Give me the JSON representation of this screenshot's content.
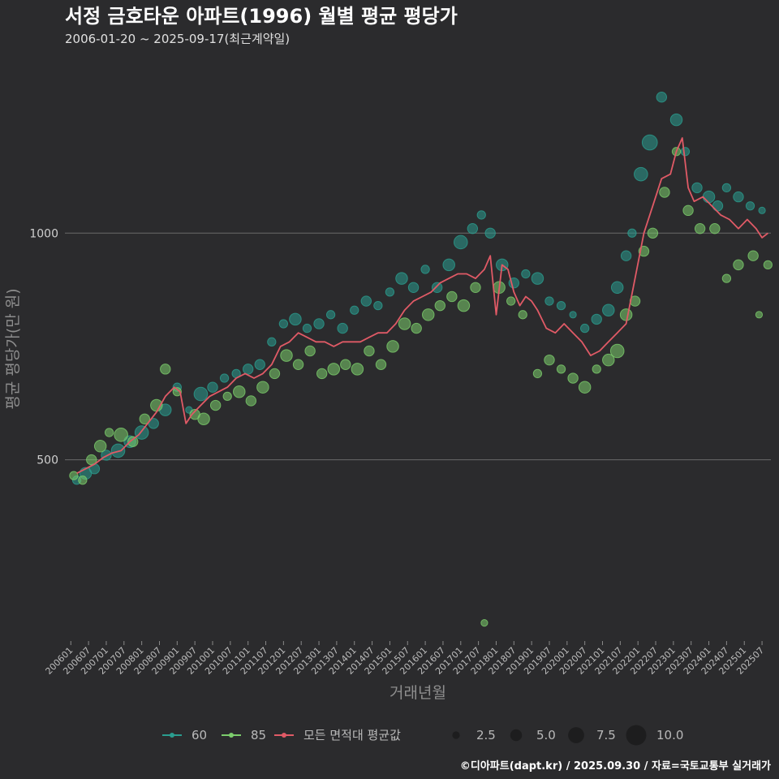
{
  "title": "서정 금호타운 아파트(1996) 월별 평균 평당가",
  "subtitle": "2006-01-20 ~ 2025-09-17(최근계약일)",
  "caption": "©디아파트(dapt.kr) / 2025.09.30 / 자료=국토교통부 실거래가",
  "colors": {
    "background": "#2b2b2d",
    "gridline": "#6a6a6a",
    "series_60": "#2a9d8f",
    "series_85": "#7ccd6c",
    "series_avg": "#e05a66"
  },
  "chart_data": {
    "type": "scatter",
    "title": "서정 금호타운 아파트(1996) 월별 평균 평당가",
    "subtitle": "2006-01-20 ~ 2025-09-17(최근계약일)",
    "xlabel": "거래년월",
    "ylabel": "평균 평당가(만 원)",
    "x_range": [
      "2005-11",
      "2025-10"
    ],
    "ylim": [
      100,
      1380
    ],
    "y_ticks": [
      500,
      1000
    ],
    "x_ticks": [
      "200601",
      "200607",
      "200701",
      "200707",
      "200801",
      "200807",
      "200901",
      "200907",
      "201001",
      "201007",
      "201101",
      "201107",
      "201201",
      "201207",
      "201301",
      "201307",
      "201401",
      "201407",
      "201501",
      "201507",
      "201601",
      "201607",
      "201701",
      "201707",
      "201801",
      "201807",
      "201901",
      "201907",
      "202001",
      "202007",
      "202101",
      "202107",
      "202201",
      "202207",
      "202301",
      "202307",
      "202401",
      "202407",
      "202501",
      "202507"
    ],
    "grid": true,
    "legend_position": "bottom",
    "legend": {
      "series": [
        "60",
        "85",
        "모든 면적대 평균값"
      ],
      "size_labels": [
        "2.5",
        "5.0",
        "7.5",
        "10.0"
      ],
      "size_values": [
        2.5,
        5.0,
        7.5,
        10.0
      ]
    },
    "series": [
      {
        "name": "60",
        "kind": "points",
        "points": [
          [
            "2006-03",
            455,
            3
          ],
          [
            "2006-06",
            470,
            5
          ],
          [
            "2006-09",
            480,
            4
          ],
          [
            "2007-01",
            510,
            4
          ],
          [
            "2007-05",
            520,
            6
          ],
          [
            "2007-09",
            540,
            5
          ],
          [
            "2008-01",
            560,
            6
          ],
          [
            "2008-05",
            580,
            4
          ],
          [
            "2008-09",
            610,
            5
          ],
          [
            "2009-01",
            660,
            3
          ],
          [
            "2009-05",
            610,
            2
          ],
          [
            "2009-09",
            645,
            6
          ],
          [
            "2010-01",
            660,
            4
          ],
          [
            "2010-05",
            680,
            3
          ],
          [
            "2010-09",
            690,
            3
          ],
          [
            "2011-01",
            700,
            4
          ],
          [
            "2011-05",
            710,
            4
          ],
          [
            "2011-09",
            760,
            3
          ],
          [
            "2012-01",
            800,
            3
          ],
          [
            "2012-05",
            810,
            5
          ],
          [
            "2012-09",
            790,
            3
          ],
          [
            "2013-01",
            800,
            4
          ],
          [
            "2013-05",
            820,
            3
          ],
          [
            "2013-09",
            790,
            4
          ],
          [
            "2014-01",
            830,
            3
          ],
          [
            "2014-05",
            850,
            4
          ],
          [
            "2014-09",
            840,
            3
          ],
          [
            "2015-01",
            870,
            3
          ],
          [
            "2015-05",
            900,
            5
          ],
          [
            "2015-09",
            880,
            4
          ],
          [
            "2016-01",
            920,
            3
          ],
          [
            "2016-05",
            880,
            4
          ],
          [
            "2016-09",
            930,
            5
          ],
          [
            "2017-01",
            980,
            6
          ],
          [
            "2017-05",
            1010,
            4
          ],
          [
            "2017-08",
            1040,
            3
          ],
          [
            "2017-11",
            1000,
            4
          ],
          [
            "2018-03",
            930,
            5
          ],
          [
            "2018-07",
            890,
            4
          ],
          [
            "2018-11",
            910,
            3
          ],
          [
            "2019-03",
            900,
            5
          ],
          [
            "2019-07",
            850,
            3
          ],
          [
            "2019-11",
            840,
            3
          ],
          [
            "2020-03",
            820,
            2
          ],
          [
            "2020-07",
            790,
            3
          ],
          [
            "2020-11",
            810,
            4
          ],
          [
            "2021-03",
            830,
            5
          ],
          [
            "2021-06",
            880,
            5
          ],
          [
            "2021-09",
            950,
            4
          ],
          [
            "2021-11",
            1000,
            3
          ],
          [
            "2022-02",
            1130,
            6
          ],
          [
            "2022-05",
            1200,
            7
          ],
          [
            "2022-09",
            1300,
            4
          ],
          [
            "2023-02",
            1250,
            5
          ],
          [
            "2023-05",
            1180,
            3
          ],
          [
            "2023-09",
            1100,
            4
          ],
          [
            "2024-01",
            1080,
            5
          ],
          [
            "2024-04",
            1060,
            4
          ],
          [
            "2024-07",
            1100,
            3
          ],
          [
            "2024-11",
            1080,
            4
          ],
          [
            "2025-03",
            1060,
            3
          ],
          [
            "2025-07",
            1050,
            2
          ]
        ]
      },
      {
        "name": "85",
        "kind": "points",
        "points": [
          [
            "2006-02",
            465,
            3
          ],
          [
            "2006-05",
            455,
            3
          ],
          [
            "2006-08",
            500,
            4
          ],
          [
            "2006-11",
            530,
            5
          ],
          [
            "2007-02",
            560,
            3
          ],
          [
            "2007-06",
            555,
            6
          ],
          [
            "2007-10",
            540,
            4
          ],
          [
            "2008-02",
            590,
            4
          ],
          [
            "2008-06",
            620,
            5
          ],
          [
            "2008-09",
            700,
            4
          ],
          [
            "2009-01",
            650,
            3
          ],
          [
            "2009-07",
            600,
            4
          ],
          [
            "2009-10",
            590,
            5
          ],
          [
            "2010-02",
            620,
            4
          ],
          [
            "2010-06",
            640,
            3
          ],
          [
            "2010-10",
            650,
            5
          ],
          [
            "2011-02",
            630,
            4
          ],
          [
            "2011-06",
            660,
            5
          ],
          [
            "2011-10",
            690,
            4
          ],
          [
            "2012-02",
            730,
            5
          ],
          [
            "2012-06",
            710,
            4
          ],
          [
            "2012-10",
            740,
            4
          ],
          [
            "2013-02",
            690,
            4
          ],
          [
            "2013-06",
            700,
            5
          ],
          [
            "2013-10",
            710,
            4
          ],
          [
            "2014-02",
            700,
            5
          ],
          [
            "2014-06",
            740,
            4
          ],
          [
            "2014-10",
            710,
            4
          ],
          [
            "2015-02",
            750,
            5
          ],
          [
            "2015-06",
            800,
            5
          ],
          [
            "2015-10",
            790,
            4
          ],
          [
            "2016-02",
            820,
            5
          ],
          [
            "2016-06",
            840,
            4
          ],
          [
            "2016-10",
            860,
            4
          ],
          [
            "2017-02",
            840,
            5
          ],
          [
            "2017-06",
            880,
            4
          ],
          [
            "2017-09",
            140,
            2
          ],
          [
            "2018-02",
            880,
            5
          ],
          [
            "2018-06",
            850,
            3
          ],
          [
            "2018-10",
            820,
            3
          ],
          [
            "2019-03",
            690,
            3
          ],
          [
            "2019-07",
            720,
            4
          ],
          [
            "2019-11",
            700,
            3
          ],
          [
            "2020-03",
            680,
            4
          ],
          [
            "2020-07",
            660,
            5
          ],
          [
            "2020-11",
            700,
            3
          ],
          [
            "2021-03",
            720,
            5
          ],
          [
            "2021-06",
            740,
            6
          ],
          [
            "2021-09",
            820,
            5
          ],
          [
            "2021-12",
            850,
            4
          ],
          [
            "2022-03",
            960,
            4
          ],
          [
            "2022-06",
            1000,
            4
          ],
          [
            "2022-10",
            1090,
            4
          ],
          [
            "2023-02",
            1180,
            3
          ],
          [
            "2023-06",
            1050,
            4
          ],
          [
            "2023-10",
            1010,
            4
          ],
          [
            "2024-03",
            1010,
            4
          ],
          [
            "2024-07",
            900,
            3
          ],
          [
            "2024-11",
            930,
            4
          ],
          [
            "2025-04",
            950,
            4
          ],
          [
            "2025-06",
            820,
            2
          ],
          [
            "2025-09",
            930,
            3
          ]
        ]
      },
      {
        "name": "모든 면적대 평균값",
        "kind": "line",
        "points": [
          [
            "2006-03",
            470
          ],
          [
            "2006-06",
            480
          ],
          [
            "2006-09",
            490
          ],
          [
            "2006-12",
            505
          ],
          [
            "2007-03",
            515
          ],
          [
            "2007-06",
            520
          ],
          [
            "2007-09",
            540
          ],
          [
            "2007-12",
            555
          ],
          [
            "2008-03",
            580
          ],
          [
            "2008-06",
            605
          ],
          [
            "2008-09",
            640
          ],
          [
            "2008-12",
            660
          ],
          [
            "2009-02",
            650
          ],
          [
            "2009-04",
            580
          ],
          [
            "2009-06",
            600
          ],
          [
            "2009-09",
            620
          ],
          [
            "2009-12",
            640
          ],
          [
            "2010-03",
            650
          ],
          [
            "2010-06",
            660
          ],
          [
            "2010-09",
            680
          ],
          [
            "2010-12",
            690
          ],
          [
            "2011-03",
            680
          ],
          [
            "2011-06",
            690
          ],
          [
            "2011-09",
            710
          ],
          [
            "2011-12",
            750
          ],
          [
            "2012-03",
            760
          ],
          [
            "2012-06",
            780
          ],
          [
            "2012-09",
            770
          ],
          [
            "2012-12",
            760
          ],
          [
            "2013-03",
            760
          ],
          [
            "2013-06",
            750
          ],
          [
            "2013-09",
            760
          ],
          [
            "2013-12",
            760
          ],
          [
            "2014-03",
            760
          ],
          [
            "2014-06",
            770
          ],
          [
            "2014-09",
            780
          ],
          [
            "2014-12",
            780
          ],
          [
            "2015-03",
            800
          ],
          [
            "2015-06",
            830
          ],
          [
            "2015-09",
            850
          ],
          [
            "2015-12",
            860
          ],
          [
            "2016-03",
            870
          ],
          [
            "2016-06",
            890
          ],
          [
            "2016-09",
            900
          ],
          [
            "2016-12",
            910
          ],
          [
            "2017-03",
            910
          ],
          [
            "2017-06",
            900
          ],
          [
            "2017-09",
            920
          ],
          [
            "2017-11",
            950
          ],
          [
            "2018-01",
            820
          ],
          [
            "2018-03",
            930
          ],
          [
            "2018-05",
            920
          ],
          [
            "2018-07",
            870
          ],
          [
            "2018-09",
            840
          ],
          [
            "2018-11",
            860
          ],
          [
            "2019-01",
            850
          ],
          [
            "2019-03",
            830
          ],
          [
            "2019-06",
            790
          ],
          [
            "2019-09",
            780
          ],
          [
            "2019-12",
            800
          ],
          [
            "2020-03",
            780
          ],
          [
            "2020-06",
            760
          ],
          [
            "2020-09",
            730
          ],
          [
            "2020-12",
            740
          ],
          [
            "2021-03",
            760
          ],
          [
            "2021-06",
            780
          ],
          [
            "2021-09",
            800
          ],
          [
            "2021-12",
            900
          ],
          [
            "2022-03",
            1000
          ],
          [
            "2022-06",
            1060
          ],
          [
            "2022-09",
            1120
          ],
          [
            "2022-12",
            1130
          ],
          [
            "2023-02",
            1180
          ],
          [
            "2023-04",
            1210
          ],
          [
            "2023-06",
            1100
          ],
          [
            "2023-08",
            1070
          ],
          [
            "2023-11",
            1080
          ],
          [
            "2024-02",
            1060
          ],
          [
            "2024-05",
            1040
          ],
          [
            "2024-08",
            1030
          ],
          [
            "2024-11",
            1010
          ],
          [
            "2025-02",
            1030
          ],
          [
            "2025-05",
            1010
          ],
          [
            "2025-07",
            990
          ],
          [
            "2025-09",
            1000
          ]
        ]
      }
    ]
  }
}
